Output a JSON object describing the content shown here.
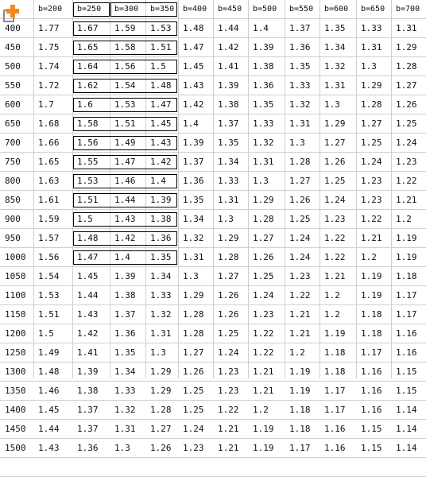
{
  "header": {
    "corner": "",
    "columns": [
      "b=200",
      "b=250",
      "b=300",
      "b=350",
      "b=400",
      "b=450",
      "b=500",
      "b=550",
      "b=600",
      "b=650",
      "b=700"
    ]
  },
  "rows": [
    {
      "h": "400",
      "v": [
        "1.77",
        "1.67",
        "1.59",
        "1.53",
        "1.48",
        "1.44",
        "1.4",
        "1.37",
        "1.35",
        "1.33",
        "1.31"
      ]
    },
    {
      "h": "450",
      "v": [
        "1.75",
        "1.65",
        "1.58",
        "1.51",
        "1.47",
        "1.42",
        "1.39",
        "1.36",
        "1.34",
        "1.31",
        "1.29"
      ]
    },
    {
      "h": "500",
      "v": [
        "1.74",
        "1.64",
        "1.56",
        "1.5",
        "1.45",
        "1.41",
        "1.38",
        "1.35",
        "1.32",
        "1.3",
        "1.28"
      ]
    },
    {
      "h": "550",
      "v": [
        "1.72",
        "1.62",
        "1.54",
        "1.48",
        "1.43",
        "1.39",
        "1.36",
        "1.33",
        "1.31",
        "1.29",
        "1.27"
      ]
    },
    {
      "h": "600",
      "v": [
        "1.7",
        "1.6",
        "1.53",
        "1.47",
        "1.42",
        "1.38",
        "1.35",
        "1.32",
        "1.3",
        "1.28",
        "1.26"
      ]
    },
    {
      "h": "650",
      "v": [
        "1.68",
        "1.58",
        "1.51",
        "1.45",
        "1.4",
        "1.37",
        "1.33",
        "1.31",
        "1.29",
        "1.27",
        "1.25"
      ]
    },
    {
      "h": "700",
      "v": [
        "1.66",
        "1.56",
        "1.49",
        "1.43",
        "1.39",
        "1.35",
        "1.32",
        "1.3",
        "1.27",
        "1.25",
        "1.24"
      ]
    },
    {
      "h": "750",
      "v": [
        "1.65",
        "1.55",
        "1.47",
        "1.42",
        "1.37",
        "1.34",
        "1.31",
        "1.28",
        "1.26",
        "1.24",
        "1.23"
      ]
    },
    {
      "h": "800",
      "v": [
        "1.63",
        "1.53",
        "1.46",
        "1.4",
        "1.36",
        "1.33",
        "1.3",
        "1.27",
        "1.25",
        "1.23",
        "1.22"
      ]
    },
    {
      "h": "850",
      "v": [
        "1.61",
        "1.51",
        "1.44",
        "1.39",
        "1.35",
        "1.31",
        "1.29",
        "1.26",
        "1.24",
        "1.23",
        "1.21"
      ]
    },
    {
      "h": "900",
      "v": [
        "1.59",
        "1.5",
        "1.43",
        "1.38",
        "1.34",
        "1.3",
        "1.28",
        "1.25",
        "1.23",
        "1.22",
        "1.2"
      ]
    },
    {
      "h": "950",
      "v": [
        "1.57",
        "1.48",
        "1.42",
        "1.36",
        "1.32",
        "1.29",
        "1.27",
        "1.24",
        "1.22",
        "1.21",
        "1.19"
      ]
    },
    {
      "h": "1000",
      "v": [
        "1.56",
        "1.47",
        "1.4",
        "1.35",
        "1.31",
        "1.28",
        "1.26",
        "1.24",
        "1.22",
        "1.2",
        "1.19"
      ]
    },
    {
      "h": "1050",
      "v": [
        "1.54",
        "1.45",
        "1.39",
        "1.34",
        "1.3",
        "1.27",
        "1.25",
        "1.23",
        "1.21",
        "1.19",
        "1.18"
      ]
    },
    {
      "h": "1100",
      "v": [
        "1.53",
        "1.44",
        "1.38",
        "1.33",
        "1.29",
        "1.26",
        "1.24",
        "1.22",
        "1.2",
        "1.19",
        "1.17"
      ]
    },
    {
      "h": "1150",
      "v": [
        "1.51",
        "1.43",
        "1.37",
        "1.32",
        "1.28",
        "1.26",
        "1.23",
        "1.21",
        "1.2",
        "1.18",
        "1.17"
      ]
    },
    {
      "h": "1200",
      "v": [
        "1.5",
        "1.42",
        "1.36",
        "1.31",
        "1.28",
        "1.25",
        "1.22",
        "1.21",
        "1.19",
        "1.18",
        "1.16"
      ]
    },
    {
      "h": "1250",
      "v": [
        "1.49",
        "1.41",
        "1.35",
        "1.3",
        "1.27",
        "1.24",
        "1.22",
        "1.2",
        "1.18",
        "1.17",
        "1.16"
      ]
    },
    {
      "h": "1300",
      "v": [
        "1.48",
        "1.39",
        "1.34",
        "1.29",
        "1.26",
        "1.23",
        "1.21",
        "1.19",
        "1.18",
        "1.16",
        "1.15"
      ]
    },
    {
      "h": "1350",
      "v": [
        "1.46",
        "1.38",
        "1.33",
        "1.29",
        "1.25",
        "1.23",
        "1.21",
        "1.19",
        "1.17",
        "1.16",
        "1.15"
      ]
    },
    {
      "h": "1400",
      "v": [
        "1.45",
        "1.37",
        "1.32",
        "1.28",
        "1.25",
        "1.22",
        "1.2",
        "1.18",
        "1.17",
        "1.16",
        "1.14"
      ]
    },
    {
      "h": "1450",
      "v": [
        "1.44",
        "1.37",
        "1.31",
        "1.27",
        "1.24",
        "1.21",
        "1.19",
        "1.18",
        "1.16",
        "1.15",
        "1.14"
      ]
    },
    {
      "h": "1500",
      "v": [
        "1.43",
        "1.36",
        "1.3",
        "1.26",
        "1.23",
        "1.21",
        "1.19",
        "1.17",
        "1.16",
        "1.15",
        "1.14"
      ]
    }
  ],
  "colors": {
    "grid": "#cfcfcf",
    "box": "#000000",
    "logo_orange": "#f08a24",
    "logo_gray": "#8a8a8a"
  },
  "icons": {
    "corner_logo": "app-logo-icon"
  }
}
